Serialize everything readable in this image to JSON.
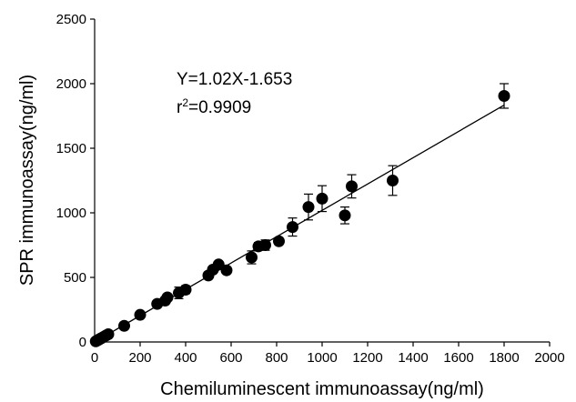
{
  "chart_data": {
    "type": "scatter",
    "xlabel": "Chemiluminescent immunoassay(ng/ml)",
    "ylabel": "SPR immunoassay(ng/ml)",
    "xlim": [
      0,
      2000
    ],
    "ylim": [
      0,
      2500
    ],
    "x_ticks": [
      "0",
      "200",
      "400",
      "600",
      "800",
      "1000",
      "1200",
      "1400",
      "1600",
      "1800",
      "2000"
    ],
    "y_ticks": [
      "0",
      "500",
      "1000",
      "1500",
      "2000",
      "2500"
    ],
    "grid": false,
    "points": [
      {
        "x": 5,
        "y": 5,
        "err": 0
      },
      {
        "x": 10,
        "y": 10,
        "err": 0
      },
      {
        "x": 15,
        "y": 15,
        "err": 0
      },
      {
        "x": 20,
        "y": 20,
        "err": 0
      },
      {
        "x": 25,
        "y": 25,
        "err": 0
      },
      {
        "x": 30,
        "y": 30,
        "err": 0
      },
      {
        "x": 40,
        "y": 40,
        "err": 0
      },
      {
        "x": 50,
        "y": 50,
        "err": 0
      },
      {
        "x": 60,
        "y": 60,
        "err": 0
      },
      {
        "x": 130,
        "y": 125,
        "err": 0
      },
      {
        "x": 200,
        "y": 210,
        "err": 0
      },
      {
        "x": 275,
        "y": 295,
        "err": 0
      },
      {
        "x": 310,
        "y": 320,
        "err": 25
      },
      {
        "x": 320,
        "y": 345,
        "err": 20
      },
      {
        "x": 370,
        "y": 380,
        "err": 45
      },
      {
        "x": 400,
        "y": 405,
        "err": 30
      },
      {
        "x": 500,
        "y": 515,
        "err": 25
      },
      {
        "x": 520,
        "y": 560,
        "err": 0
      },
      {
        "x": 545,
        "y": 600,
        "err": 0
      },
      {
        "x": 580,
        "y": 555,
        "err": 0
      },
      {
        "x": 690,
        "y": 655,
        "err": 50
      },
      {
        "x": 720,
        "y": 740,
        "err": 30
      },
      {
        "x": 750,
        "y": 750,
        "err": 40
      },
      {
        "x": 810,
        "y": 780,
        "err": 20
      },
      {
        "x": 870,
        "y": 890,
        "err": 70
      },
      {
        "x": 940,
        "y": 1045,
        "err": 100
      },
      {
        "x": 1000,
        "y": 1110,
        "err": 100
      },
      {
        "x": 1100,
        "y": 980,
        "err": 65
      },
      {
        "x": 1130,
        "y": 1205,
        "err": 90
      },
      {
        "x": 1310,
        "y": 1250,
        "err": 115
      },
      {
        "x": 1800,
        "y": 1905,
        "err": 95
      }
    ],
    "fit": {
      "slope": 1.02,
      "intercept": -1.653,
      "x_range": [
        0,
        1800
      ]
    },
    "annotations": {
      "equation": "Y=1.02X-1.653",
      "r2_prefix": "r",
      "r2_sup": "2",
      "r2_value": "=0.9909"
    }
  }
}
